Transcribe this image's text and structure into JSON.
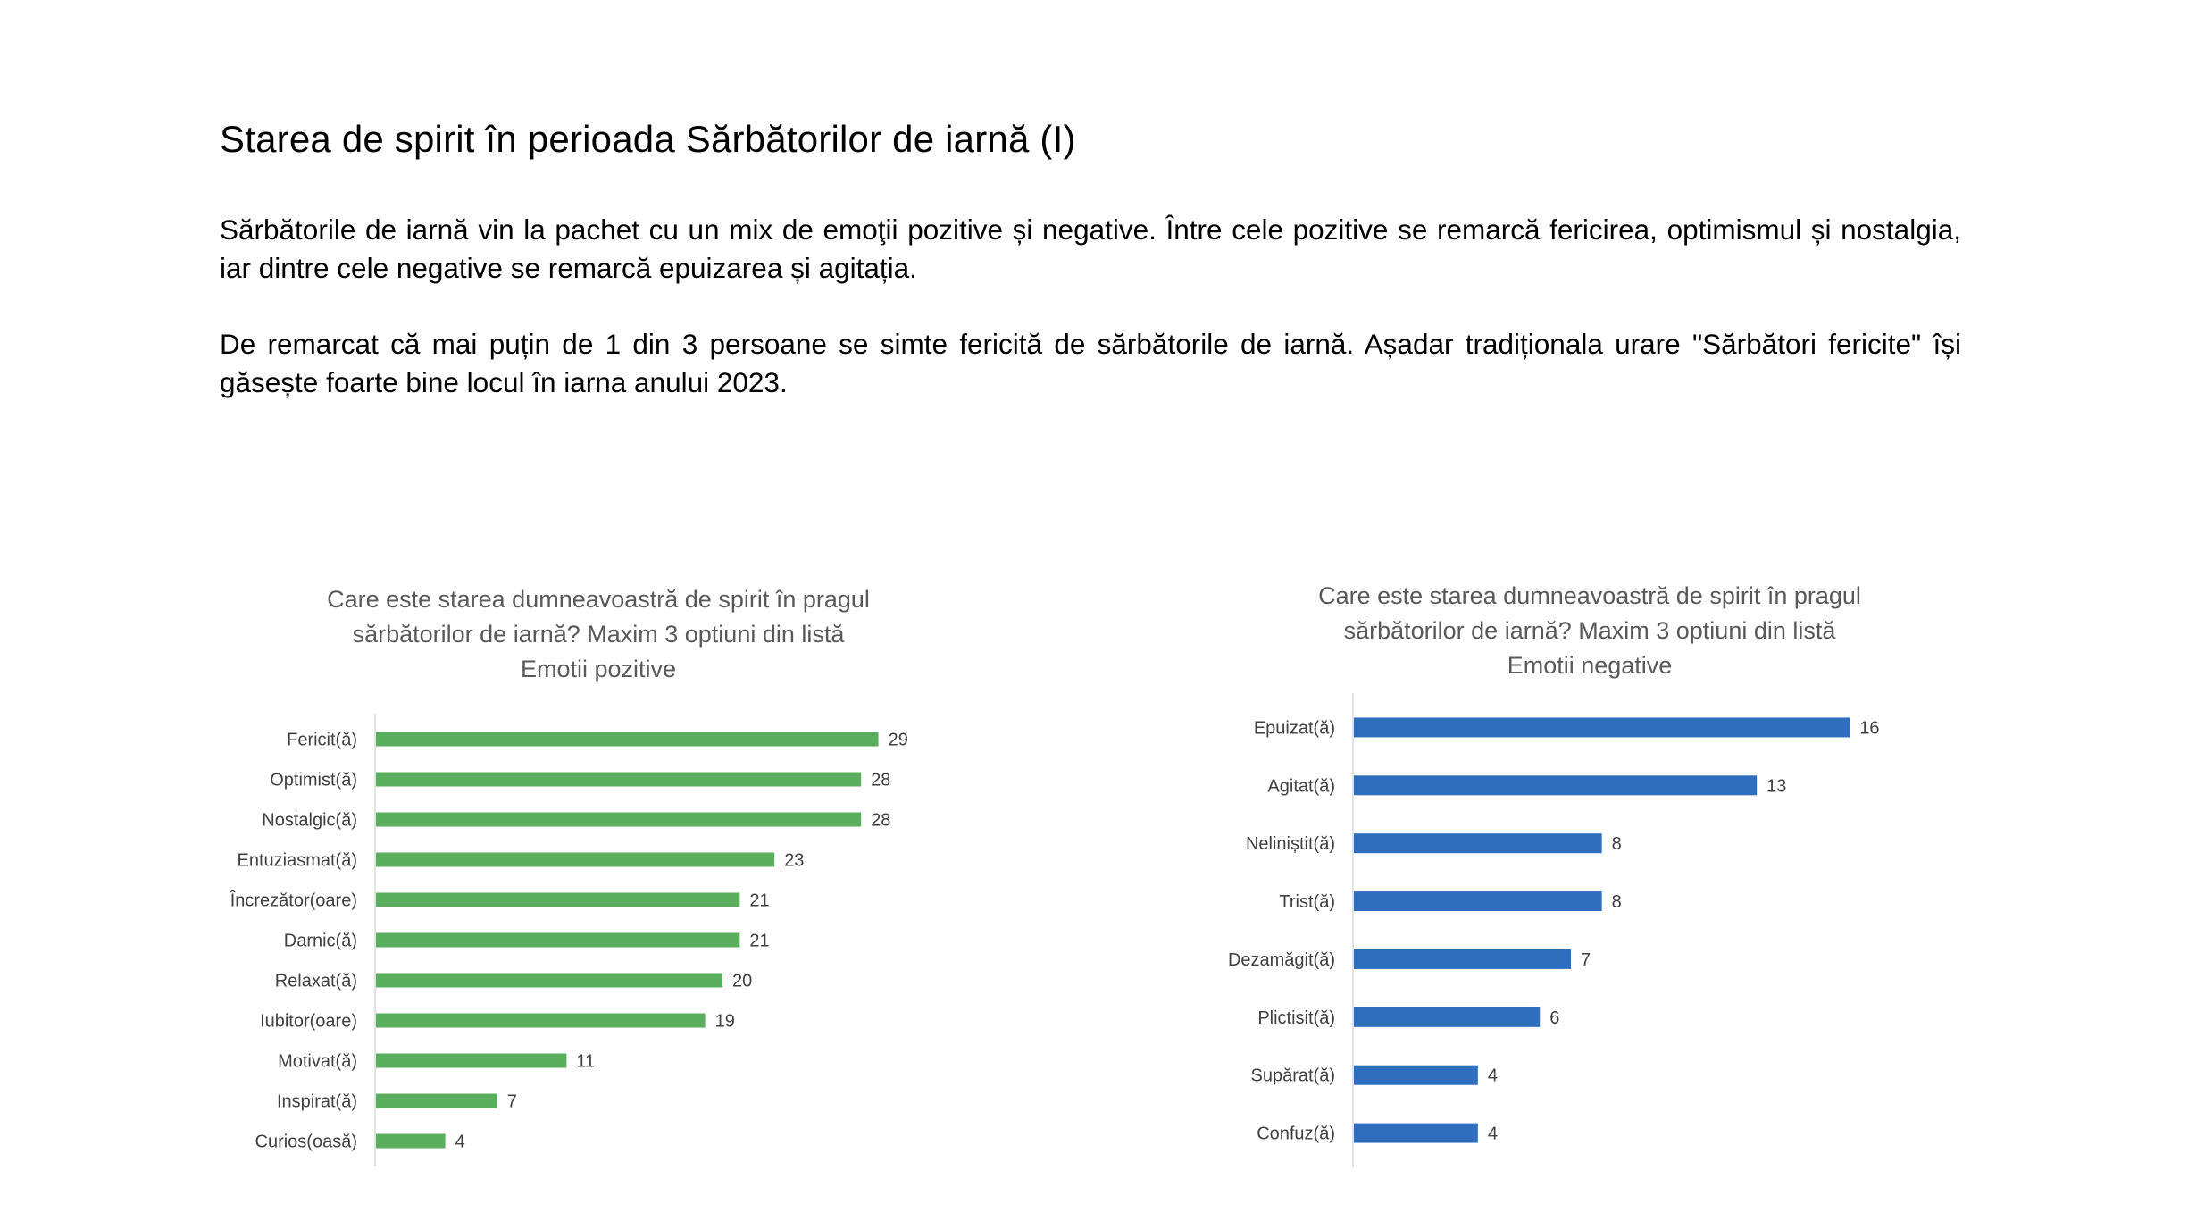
{
  "page": {
    "title": "Starea de spirit în perioada Sărbătorilor de iarnă (I)",
    "paragraph1": "Sărbătorile de iarnă vin la pachet cu un mix de emoţii pozitive și negative. Între cele pozitive se remarcă fericirea, optimismul și nostalgia, iar dintre cele negative se remarcă epuizarea și agitația.",
    "paragraph2": "De remarcat că mai puțin de 1 din 3 persoane se simte fericită de sărbătorile de iarnă. Așadar tradiționala urare \"Sărbători fericite\" își găsește foarte bine locul în iarna anului 2023."
  },
  "chart_data": [
    {
      "type": "bar",
      "orientation": "horizontal",
      "title_lines": [
        "Care este starea dumneavoastră de spirit în pragul",
        "sărbătorilor de iarnă? Maxim 3 optiuni din listă",
        "Emotii pozitive"
      ],
      "categories": [
        "Fericit(ă)",
        "Optimist(ă)",
        "Nostalgic(ă)",
        "Entuziasmat(ă)",
        "Încrezător(oare)",
        "Darnic(ă)",
        "Relaxat(ă)",
        "Iubitor(oare)",
        "Motivat(ă)",
        "Inspirat(ă)",
        "Curios(oasă)"
      ],
      "values": [
        29,
        28,
        28,
        23,
        21,
        21,
        20,
        19,
        11,
        7,
        4
      ],
      "xlim": [
        0,
        30
      ],
      "color": "#5BAE5E",
      "grid": false,
      "legend": "none"
    },
    {
      "type": "bar",
      "orientation": "horizontal",
      "title_lines": [
        "Care este starea dumneavoastră de spirit în pragul",
        "sărbătorilor de iarnă? Maxim 3 optiuni din listă",
        "Emotii negative"
      ],
      "categories": [
        "Epuizat(ă)",
        "Agitat(ă)",
        "Neliniștit(ă)",
        "Trist(ă)",
        "Dezamăgit(ă)",
        "Plictisit(ă)",
        "Supărat(ă)",
        "Confuz(ă)"
      ],
      "values": [
        16,
        13,
        8,
        8,
        7,
        6,
        4,
        4
      ],
      "xlim": [
        0,
        17
      ],
      "color": "#2F6DBD",
      "grid": false,
      "legend": "none"
    }
  ]
}
